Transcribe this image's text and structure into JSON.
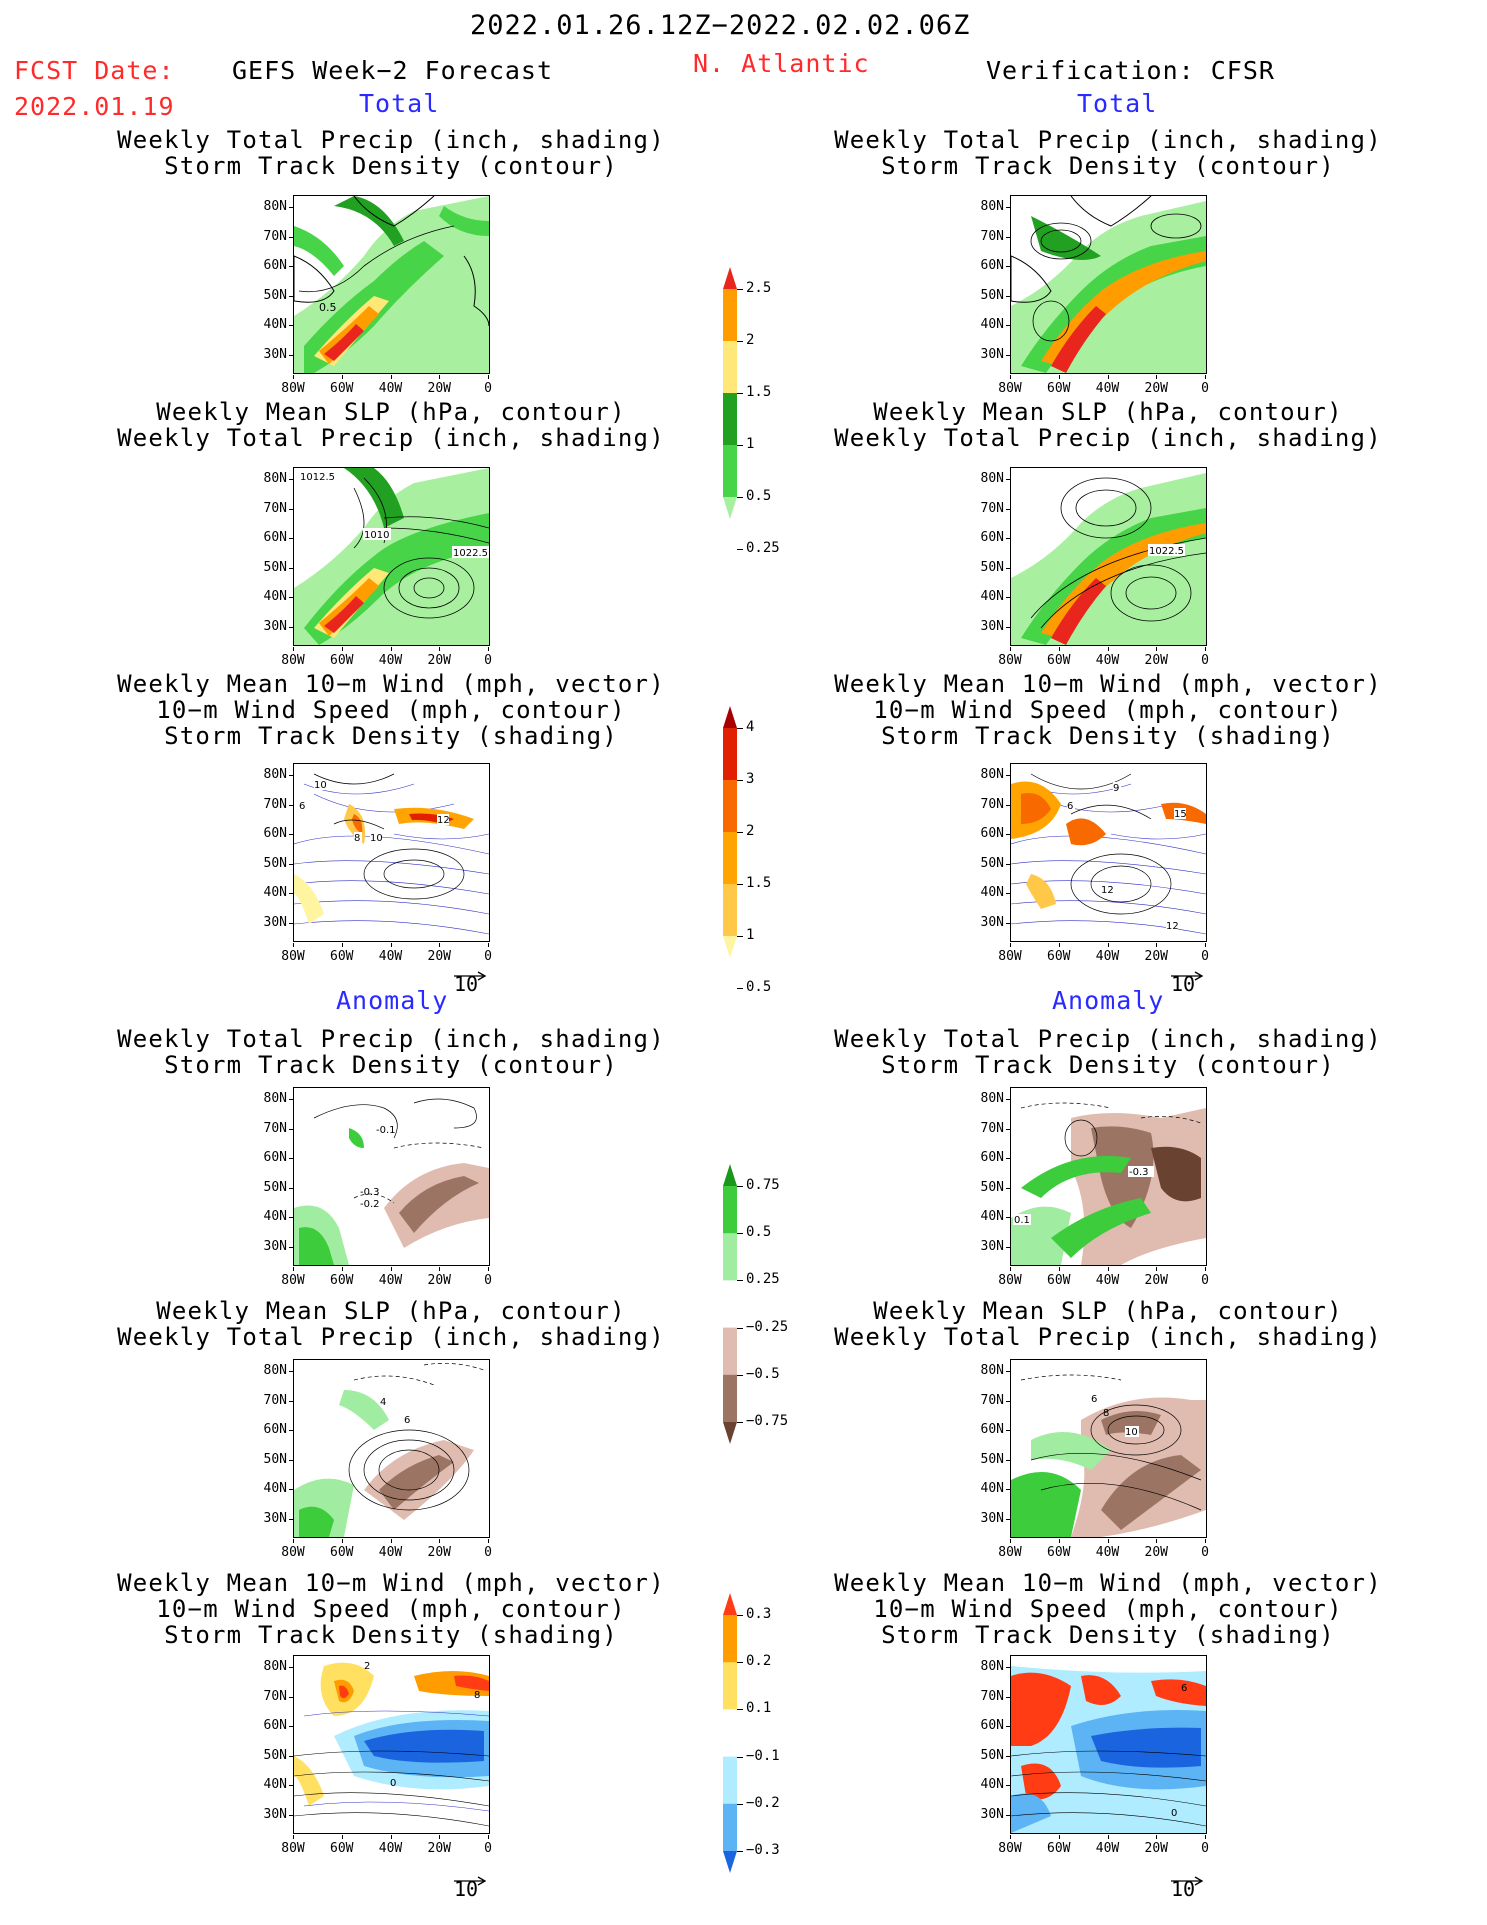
{
  "header": {
    "date_range": "2022.01.26.12Z−2022.02.02.06Z",
    "fcst_label": "FCST Date:",
    "fcst_date": "2022.01.19",
    "left_title": "GEFS Week−2 Forecast",
    "region": "N. Atlantic",
    "right_title": "Verification: CFSR"
  },
  "sections": {
    "total": "Total",
    "anomaly": "Anomaly"
  },
  "panel_titles": {
    "precip_track": [
      "Weekly Total Precip (inch, shading)",
      "Storm Track Density (contour)"
    ],
    "slp_precip": [
      "Weekly Mean SLP (hPa, contour)",
      "Weekly Total Precip (inch, shading)"
    ],
    "wind_track": [
      "Weekly Mean 10−m Wind (mph, vector)",
      "10−m Wind Speed (mph, contour)",
      "Storm Track Density (shading)"
    ]
  },
  "axes": {
    "lat_ticks": [
      "80N",
      "70N",
      "60N",
      "50N",
      "40N",
      "30N"
    ],
    "lon_ticks": [
      "80W",
      "60W",
      "40W",
      "20W",
      "0"
    ]
  },
  "vector_ref": "10",
  "contour_labels": {
    "fcst_total_precip": [
      "0.5"
    ],
    "fcst_total_slp": [
      "1012.5",
      "1010",
      "1022.5"
    ],
    "obs_total_slp": [
      "1022.5"
    ],
    "fcst_total_wind": [
      "10",
      "6",
      "12",
      "8",
      "10"
    ],
    "obs_total_wind": [
      "9",
      "6",
      "15",
      "12",
      "12"
    ],
    "fcst_anom_precip": [
      "-0.1",
      "-0.3",
      "-0.2"
    ],
    "obs_anom_precip": [
      "-0.3",
      "0.1"
    ],
    "fcst_anom_slp": [
      "4",
      "6"
    ],
    "obs_anom_slp": [
      "6",
      "8",
      "10"
    ],
    "fcst_anom_wind": [
      "2",
      "8",
      "0"
    ],
    "obs_anom_wind": [
      "6",
      "0"
    ]
  },
  "colorbars": {
    "precip_total": {
      "labels": [
        "2.5",
        "2",
        "1.5",
        "1",
        "0.5",
        "0.25"
      ],
      "colors": [
        "#e8261e",
        "#ff9c00",
        "#ffe878",
        "#22a022",
        "#48d448",
        "#a8f0a0"
      ]
    },
    "track_total": {
      "labels": [
        "4",
        "3",
        "2",
        "1.5",
        "1",
        "0.5"
      ],
      "colors": [
        "#a80000",
        "#e02000",
        "#f86a00",
        "#ffa400",
        "#ffc848",
        "#fff4a0"
      ]
    },
    "precip_anom": {
      "labels": [
        "0.75",
        "0.5",
        "0.25",
        "−0.25",
        "−0.5",
        "−0.75"
      ],
      "colors": [
        "#1c961c",
        "#3ccc3c",
        "#a0eca0",
        "#ffffff",
        "#e0bcb0",
        "#9c7464",
        "#6a4232"
      ]
    },
    "track_anom": {
      "labels": [
        "0.3",
        "0.2",
        "0.1",
        "−0.1",
        "−0.2",
        "−0.3"
      ],
      "colors": [
        "#ff3c14",
        "#ff9c00",
        "#ffe060",
        "#ffffff",
        "#b0ecff",
        "#5cb4f4",
        "#1a64e0"
      ]
    }
  }
}
